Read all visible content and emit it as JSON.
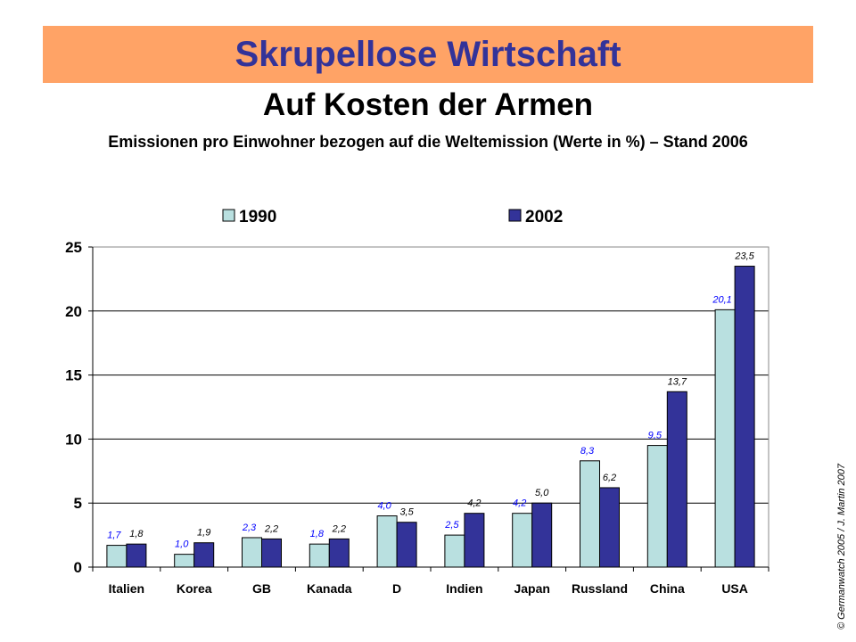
{
  "header": {
    "title": "Skrupellose Wirtschaft",
    "subtitle": "Auf Kosten der Armen",
    "caption": "Emissionen pro Einwohner bezogen auf die Weltemission (Werte in %) – Stand 2006"
  },
  "credit": "© Germanwatch 2005 / J. Martin 2007",
  "chart_data": {
    "type": "bar",
    "categories": [
      "Italien",
      "Korea",
      "GB",
      "Kanada",
      "D",
      "Indien",
      "Japan",
      "Russland",
      "China",
      "USA"
    ],
    "series": [
      {
        "name": "1990",
        "values": [
          1.7,
          1.0,
          2.3,
          1.8,
          4.0,
          2.5,
          4.2,
          8.3,
          9.5,
          20.1
        ],
        "labels": [
          "1,7",
          "1,0",
          "2,3",
          "1,8",
          "4,0",
          "2,5",
          "4,2",
          "8,3",
          "9,5",
          "20,1"
        ],
        "color": "#b9e0e0",
        "label_color": "#0000ff"
      },
      {
        "name": "2002",
        "values": [
          1.8,
          1.9,
          2.2,
          2.2,
          3.5,
          4.2,
          5.0,
          6.2,
          13.7,
          23.5
        ],
        "labels": [
          "1,8",
          "1,9",
          "2,2",
          "2,2",
          "3,5",
          "4,2",
          "5,0",
          "6,2",
          "13,7",
          "23,5"
        ],
        "color": "#333399",
        "label_color": "#000000"
      }
    ],
    "yticks": [
      "0",
      "5",
      "10",
      "15",
      "20",
      "25"
    ],
    "ylim": [
      0,
      25
    ],
    "grid": true,
    "legend": "top"
  }
}
